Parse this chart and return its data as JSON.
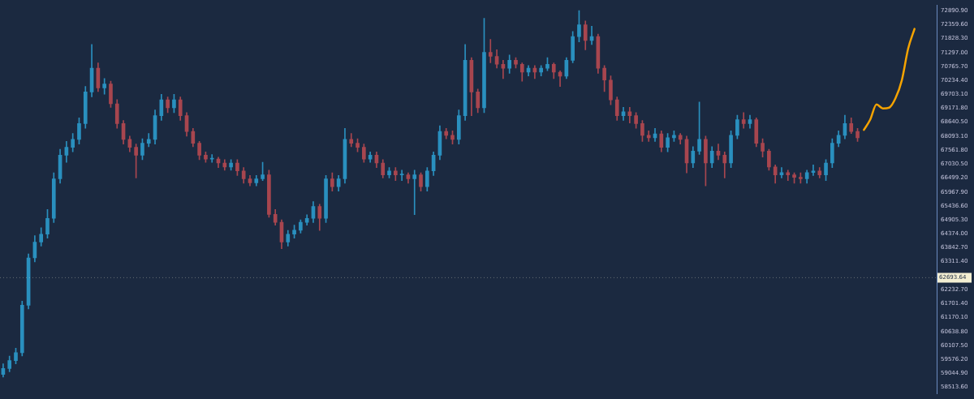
{
  "chart_data": {
    "type": "candlestick",
    "tick_labels": "y",
    "grid": false,
    "legend": false,
    "categories": [
      null,
      null,
      null,
      null,
      null,
      null,
      null,
      null,
      null,
      null,
      null,
      null,
      null,
      null,
      null,
      null,
      null,
      null,
      null,
      null,
      null,
      null,
      null,
      null,
      null,
      null,
      null,
      null,
      null,
      null,
      null,
      null,
      null,
      null,
      null,
      null,
      null,
      null,
      null,
      null,
      null,
      null,
      null,
      null,
      null,
      null,
      null,
      null,
      null,
      null,
      null,
      null,
      null,
      null,
      null,
      null,
      null,
      null,
      null,
      null,
      null,
      null,
      null,
      null,
      null,
      null,
      null,
      null,
      null,
      null,
      null,
      null,
      null,
      null,
      null,
      null,
      null,
      null,
      null,
      null,
      null,
      null,
      null,
      null,
      null,
      null,
      null,
      null,
      null,
      null,
      null,
      null,
      null,
      null,
      null,
      null,
      null,
      null,
      null,
      null,
      null,
      null,
      null,
      null,
      null,
      null,
      null,
      null,
      null,
      null,
      null,
      null,
      null,
      null,
      null,
      null,
      null,
      null,
      null,
      null,
      null,
      null,
      null,
      null,
      null,
      null,
      null,
      null,
      null,
      null,
      null,
      null,
      null,
      null,
      null,
      null,
      null,
      null,
      null,
      null,
      null,
      null,
      null,
      null,
      null,
      null,
      null,
      null
    ],
    "ohlc": [
      [
        59000,
        59400,
        58900,
        59224
      ],
      [
        59224,
        59700,
        59100,
        59525
      ],
      [
        59525,
        60000,
        59400,
        59827
      ],
      [
        59827,
        61800,
        59700,
        61639
      ],
      [
        61639,
        63600,
        61500,
        63450
      ],
      [
        63450,
        64300,
        63300,
        64054
      ],
      [
        64054,
        64600,
        63900,
        64356
      ],
      [
        64356,
        65300,
        64200,
        64960
      ],
      [
        64960,
        66700,
        64800,
        66469
      ],
      [
        66469,
        67600,
        66300,
        67375
      ],
      [
        67375,
        67900,
        67100,
        67677
      ],
      [
        67677,
        68200,
        67500,
        67979
      ],
      [
        67979,
        68800,
        67800,
        68582
      ],
      [
        68582,
        70000,
        68400,
        69790
      ],
      [
        69790,
        71600,
        69600,
        70695
      ],
      [
        70695,
        70900,
        69800,
        69941
      ],
      [
        69941,
        70300,
        69700,
        70092
      ],
      [
        70092,
        70200,
        69200,
        69337
      ],
      [
        69337,
        69500,
        68400,
        68582
      ],
      [
        68582,
        68700,
        67800,
        67979
      ],
      [
        67979,
        68100,
        67500,
        67677
      ],
      [
        67677,
        67800,
        66500,
        67375
      ],
      [
        67375,
        68000,
        67200,
        67828
      ],
      [
        67828,
        68200,
        67700,
        67979
      ],
      [
        67979,
        69100,
        67800,
        68884
      ],
      [
        68884,
        69700,
        68700,
        69488
      ],
      [
        69488,
        69600,
        69000,
        69186
      ],
      [
        69186,
        69700,
        69000,
        69488
      ],
      [
        69488,
        69600,
        68700,
        68884
      ],
      [
        68884,
        69000,
        68100,
        68281
      ],
      [
        68281,
        68400,
        67700,
        67828
      ],
      [
        67828,
        67900,
        67200,
        67375
      ],
      [
        67375,
        67500,
        67100,
        67224
      ],
      [
        67224,
        67400,
        67100,
        67224
      ],
      [
        67224,
        67300,
        66900,
        67073
      ],
      [
        67073,
        67200,
        66800,
        66922
      ],
      [
        66922,
        67200,
        66800,
        67073
      ],
      [
        67073,
        67200,
        66600,
        66771
      ],
      [
        66771,
        66900,
        66300,
        66469
      ],
      [
        66469,
        66600,
        66200,
        66318
      ],
      [
        66318,
        66600,
        66200,
        66469
      ],
      [
        66469,
        67100,
        66400,
        66620
      ],
      [
        66620,
        66800,
        65000,
        65111
      ],
      [
        65111,
        65300,
        64700,
        64809
      ],
      [
        64809,
        64900,
        63800,
        64054
      ],
      [
        64054,
        64500,
        63900,
        64356
      ],
      [
        64356,
        64700,
        64200,
        64507
      ],
      [
        64507,
        64900,
        64400,
        64809
      ],
      [
        64809,
        65100,
        64700,
        64960
      ],
      [
        64960,
        65600,
        64800,
        65413
      ],
      [
        65413,
        65500,
        64500,
        64960
      ],
      [
        64960,
        66600,
        64800,
        66469
      ],
      [
        66469,
        66700,
        66000,
        66167
      ],
      [
        66167,
        66600,
        66000,
        66469
      ],
      [
        66469,
        68400,
        66300,
        67979
      ],
      [
        67979,
        68200,
        67700,
        67828
      ],
      [
        67828,
        68000,
        67500,
        67677
      ],
      [
        67677,
        67800,
        67100,
        67224
      ],
      [
        67224,
        67500,
        67100,
        67375
      ],
      [
        67375,
        67500,
        66900,
        67073
      ],
      [
        67073,
        67200,
        66500,
        66620
      ],
      [
        66620,
        66900,
        66500,
        66771
      ],
      [
        66771,
        66900,
        66400,
        66620
      ],
      [
        66620,
        66800,
        66400,
        66620
      ],
      [
        66620,
        66700,
        66300,
        66469
      ],
      [
        66469,
        66800,
        65100,
        66620
      ],
      [
        66620,
        66700,
        66000,
        66167
      ],
      [
        66167,
        66900,
        66000,
        66771
      ],
      [
        66771,
        67500,
        66600,
        67375
      ],
      [
        67375,
        68500,
        67200,
        68281
      ],
      [
        68281,
        68400,
        68000,
        68130
      ],
      [
        68130,
        68300,
        67800,
        67979
      ],
      [
        67979,
        69100,
        67800,
        68884
      ],
      [
        68884,
        71600,
        68700,
        70998
      ],
      [
        70998,
        71100,
        68880,
        69790
      ],
      [
        69790,
        69900,
        69000,
        69186
      ],
      [
        69186,
        72600,
        69000,
        71300
      ],
      [
        71300,
        71800,
        70900,
        71149
      ],
      [
        71149,
        71400,
        70700,
        70847
      ],
      [
        70847,
        71000,
        70300,
        70696
      ],
      [
        70696,
        71200,
        70500,
        70998
      ],
      [
        70998,
        71100,
        70700,
        70847
      ],
      [
        70847,
        70900,
        70200,
        70545
      ],
      [
        70545,
        70800,
        70400,
        70696
      ],
      [
        70696,
        70800,
        70300,
        70545
      ],
      [
        70545,
        70800,
        70400,
        70696
      ],
      [
        70696,
        71100,
        70600,
        70847
      ],
      [
        70847,
        70900,
        70300,
        70545
      ],
      [
        70545,
        70600,
        70000,
        70394
      ],
      [
        70394,
        71100,
        70300,
        70998
      ],
      [
        70998,
        72100,
        70900,
        71905
      ],
      [
        71905,
        72900,
        71700,
        72356
      ],
      [
        72356,
        72500,
        71400,
        71752
      ],
      [
        71752,
        72300,
        71600,
        71905
      ],
      [
        71905,
        72000,
        70500,
        70696
      ],
      [
        70696,
        70800,
        69800,
        70243
      ],
      [
        70243,
        70400,
        69300,
        69488
      ],
      [
        69488,
        69600,
        68700,
        68884
      ],
      [
        68884,
        69200,
        68700,
        69035
      ],
      [
        69035,
        69200,
        68600,
        68884
      ],
      [
        68884,
        69000,
        68400,
        68582
      ],
      [
        68582,
        68700,
        67900,
        68130
      ],
      [
        68130,
        68300,
        67900,
        68039
      ],
      [
        68039,
        68400,
        67900,
        68190
      ],
      [
        68190,
        68300,
        67500,
        67677
      ],
      [
        67677,
        68200,
        67500,
        68039
      ],
      [
        68039,
        68300,
        67900,
        68130
      ],
      [
        68130,
        68200,
        67800,
        67979
      ],
      [
        67979,
        68100,
        66700,
        67073
      ],
      [
        67073,
        67700,
        66900,
        67526
      ],
      [
        67526,
        69400,
        67400,
        67979
      ],
      [
        67979,
        68100,
        66200,
        67073
      ],
      [
        67073,
        67700,
        66900,
        67526
      ],
      [
        67526,
        67800,
        67200,
        67375
      ],
      [
        67375,
        67500,
        66500,
        67073
      ],
      [
        67073,
        68300,
        66900,
        68130
      ],
      [
        68130,
        68900,
        68000,
        68733
      ],
      [
        68733,
        69000,
        68400,
        68582
      ],
      [
        68582,
        68900,
        68400,
        68733
      ],
      [
        68733,
        68800,
        67700,
        67828
      ],
      [
        67828,
        68000,
        67300,
        67526
      ],
      [
        67526,
        67600,
        66800,
        66922
      ],
      [
        66922,
        67000,
        66300,
        66620
      ],
      [
        66620,
        66900,
        66500,
        66711
      ],
      [
        66711,
        66800,
        66400,
        66620
      ],
      [
        66620,
        66700,
        66300,
        66529
      ],
      [
        66529,
        66700,
        66300,
        66469
      ],
      [
        66469,
        66800,
        66300,
        66711
      ],
      [
        66711,
        67000,
        66600,
        66771
      ],
      [
        66771,
        66900,
        66500,
        66620
      ],
      [
        66620,
        67200,
        66400,
        67073
      ],
      [
        67073,
        68000,
        66900,
        67828
      ],
      [
        67828,
        68300,
        67700,
        68130
      ],
      [
        68130,
        68900,
        68000,
        68582
      ],
      [
        68582,
        68800,
        68200,
        68281
      ],
      [
        68281,
        68400,
        67900,
        68039
      ],
      null,
      null,
      null,
      null,
      null,
      null,
      null,
      null,
      null,
      null,
      null,
      null
    ],
    "colors": [
      "#2a90bf",
      "#2a90bf",
      "#2a90bf",
      "#2a90bf",
      "#2a90bf",
      "#2a90bf",
      "#2a90bf",
      "#2a90bf",
      "#2a90bf",
      "#2a90bf",
      "#2a90bf",
      "#2a90bf",
      "#2a90bf",
      "#2a90bf",
      "#2a90bf",
      "#a8464f",
      "#2a90bf",
      "#a8464f",
      "#a8464f",
      "#a8464f",
      "#a8464f",
      "#a8464f",
      "#2a90bf",
      "#2a90bf",
      "#2a90bf",
      "#2a90bf",
      "#a8464f",
      "#2a90bf",
      "#a8464f",
      "#a8464f",
      "#a8464f",
      "#a8464f",
      "#a8464f",
      "#2a90bf",
      "#a8464f",
      "#a8464f",
      "#2a90bf",
      "#a8464f",
      "#a8464f",
      "#a8464f",
      "#2a90bf",
      "#2a90bf",
      "#a8464f",
      "#a8464f",
      "#a8464f",
      "#2a90bf",
      "#2a90bf",
      "#2a90bf",
      "#2a90bf",
      "#2a90bf",
      "#a8464f",
      "#2a90bf",
      "#a8464f",
      "#2a90bf",
      "#2a90bf",
      "#a8464f",
      "#a8464f",
      "#a8464f",
      "#2a90bf",
      "#a8464f",
      "#a8464f",
      "#2a90bf",
      "#a8464f",
      "#2a90bf",
      "#a8464f",
      "#2a90bf",
      "#a8464f",
      "#2a90bf",
      "#2a90bf",
      "#2a90bf",
      "#a8464f",
      "#a8464f",
      "#2a90bf",
      "#2a90bf",
      "#a8464f",
      "#a8464f",
      "#2a90bf",
      "#a8464f",
      "#a8464f",
      "#a8464f",
      "#2a90bf",
      "#a8464f",
      "#a8464f",
      "#2a90bf",
      "#a8464f",
      "#2a90bf",
      "#2a90bf",
      "#a8464f",
      "#a8464f",
      "#2a90bf",
      "#2a90bf",
      "#2a90bf",
      "#a8464f",
      "#2a90bf",
      "#a8464f",
      "#a8464f",
      "#a8464f",
      "#a8464f",
      "#2a90bf",
      "#a8464f",
      "#a8464f",
      "#a8464f",
      "#a8464f",
      "#2a90bf",
      "#a8464f",
      "#2a90bf",
      "#2a90bf",
      "#a8464f",
      "#a8464f",
      "#2a90bf",
      "#2a90bf",
      "#a8464f",
      "#2a90bf",
      "#a8464f",
      "#a8464f",
      "#2a90bf",
      "#2a90bf",
      "#a8464f",
      "#2a90bf",
      "#a8464f",
      "#a8464f",
      "#a8464f",
      "#a8464f",
      "#2a90bf",
      "#a8464f",
      "#a8464f",
      "#a8464f",
      "#2a90bf",
      "#2a90bf",
      "#a8464f",
      "#2a90bf",
      "#2a90bf",
      "#2a90bf",
      "#2a90bf",
      "#a8464f",
      "#a8464f",
      null,
      null,
      null,
      null,
      null,
      null,
      null,
      null,
      null,
      null,
      null,
      null
    ],
    "series": [
      {
        "type": "line",
        "color": "#f5a300",
        "values": [
          null,
          null,
          null,
          null,
          null,
          null,
          null,
          null,
          null,
          null,
          null,
          null,
          null,
          null,
          null,
          null,
          null,
          null,
          null,
          null,
          null,
          null,
          null,
          null,
          null,
          null,
          null,
          null,
          null,
          null,
          null,
          null,
          null,
          null,
          null,
          null,
          null,
          null,
          null,
          null,
          null,
          null,
          null,
          null,
          null,
          null,
          null,
          null,
          null,
          null,
          null,
          null,
          null,
          null,
          null,
          null,
          null,
          null,
          null,
          null,
          null,
          null,
          null,
          null,
          null,
          null,
          null,
          null,
          null,
          null,
          null,
          null,
          null,
          null,
          null,
          null,
          null,
          null,
          null,
          null,
          null,
          null,
          null,
          null,
          null,
          null,
          null,
          null,
          null,
          null,
          null,
          null,
          null,
          null,
          null,
          null,
          null,
          null,
          null,
          null,
          null,
          null,
          null,
          null,
          null,
          null,
          null,
          null,
          null,
          null,
          null,
          null,
          null,
          null,
          null,
          null,
          null,
          null,
          null,
          null,
          null,
          null,
          null,
          null,
          null,
          null,
          null,
          null,
          null,
          null,
          null,
          null,
          null,
          null,
          null,
          null,
          68340,
          68730,
          69310,
          69160,
          69190,
          69550,
          70240,
          71450,
          72200,
          null,
          null,
          null
        ]
      }
    ],
    "ylim": [
      58250,
      73110
    ],
    "yticks": [
      {
        "value": 72890.9,
        "label": "72890.90"
      },
      {
        "value": 72359.6,
        "label": "72359.60"
      },
      {
        "value": 71828.3,
        "label": "71828.30"
      },
      {
        "value": 71297,
        "label": "71297.00"
      },
      {
        "value": 70765.7,
        "label": "70765.70"
      },
      {
        "value": 70234.4,
        "label": "70234.40"
      },
      {
        "value": 69703.1,
        "label": "69703.10"
      },
      {
        "value": 69171.8,
        "label": "69171.80"
      },
      {
        "value": 68640.5,
        "label": "68640.50"
      },
      {
        "value": 68093.1,
        "label": "68093.10"
      },
      {
        "value": 67561.8,
        "label": "67561.80"
      },
      {
        "value": 67030.5,
        "label": "67030.50"
      },
      {
        "value": 66499.2,
        "label": "66499.20"
      },
      {
        "value": 65967.9,
        "label": "65967.90"
      },
      {
        "value": 65436.6,
        "label": "65436.60"
      },
      {
        "value": 64905.3,
        "label": "64905.30"
      },
      {
        "value": 64374,
        "label": "64374.00"
      },
      {
        "value": 63842.7,
        "label": "63842.70"
      },
      {
        "value": 63311.4,
        "label": "63311.40"
      },
      {
        "value": 62232.7,
        "label": "62232.70"
      },
      {
        "value": 61701.4,
        "label": "61701.40"
      },
      {
        "value": 61170.1,
        "label": "61170.10"
      },
      {
        "value": 60638.8,
        "label": "60638.80"
      },
      {
        "value": 60107.5,
        "label": "60107.50"
      },
      {
        "value": 59576.2,
        "label": "59576.20"
      },
      {
        "value": 59044.9,
        "label": "59044.90"
      },
      {
        "value": 58513.6,
        "label": "58513.60"
      }
    ],
    "ref_lines": [
      {
        "axis": "y",
        "value": 62693.64,
        "label": "62693.64",
        "color": "#f3eed2"
      }
    ]
  }
}
